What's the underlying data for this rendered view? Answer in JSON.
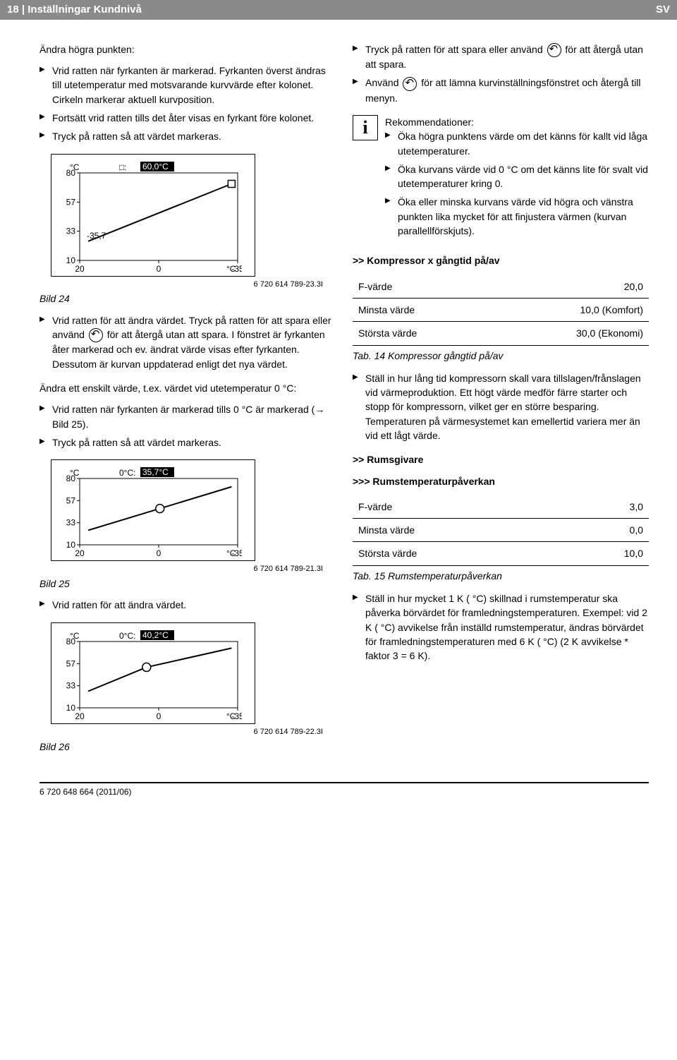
{
  "header": {
    "page_num": "18",
    "title": "Inställningar Kundnivå",
    "lang": "SV"
  },
  "left": {
    "intro_para": "Ändra högra punkten:",
    "intro_bullets": [
      "Vrid ratten när fyrkanten är markerad. Fyrkanten överst ändras till utetemperatur med motsvarande kurvvärde efter kolonet. Cirkeln markerar aktuell kurvposition.",
      "Fortsätt vrid ratten tills det åter visas en fyrkant före kolonet.",
      "Tryck på ratten så att värdet markeras."
    ],
    "chart24": {
      "type": "line",
      "unit": "°C",
      "header_label": "□:",
      "header_value": "60,0°C",
      "y_ticks": [
        "80",
        "57",
        "33",
        "10"
      ],
      "x_ticks": [
        "20",
        "0",
        "-35"
      ],
      "curve_point_label": "-35,7",
      "marker": "square_right",
      "curve": [
        [
          14,
          125
        ],
        [
          250,
          20
        ]
      ],
      "line_color": "#000000",
      "background": "#ffffff",
      "caption": "6 720 614 789-23.3I"
    },
    "bild24_label": "Bild 24",
    "after24_bullets": [
      "Vrid ratten för att ändra värdet. Tryck på ratten för att spara eller använd __ICON__ för att återgå utan att spara. I fönstret är fyrkanten åter markerad och ev. ändrat värde visas efter fyrkanten. Dessutom är kurvan uppdaterad enligt det nya värdet."
    ],
    "mid_para": "Ändra ett enskilt värde, t.ex. värdet vid utetemperatur 0 °C:",
    "mid_bullets": [
      "Vrid ratten när fyrkanten är markerad tills 0 °C är markerad (→ Bild 25).",
      "Tryck på ratten så att värdet markeras."
    ],
    "chart25": {
      "type": "line",
      "unit": "°C",
      "header_label": "0°C:",
      "header_value": "35,7°C",
      "y_ticks": [
        "80",
        "57",
        "33",
        "10"
      ],
      "x_ticks": [
        "20",
        "0",
        "-35"
      ],
      "marker": "circle_mid",
      "curve": [
        [
          14,
          125
        ],
        [
          250,
          20
        ]
      ],
      "line_color": "#000000",
      "background": "#ffffff",
      "caption": "6 720 614 789-21.3I",
      "height": 130
    },
    "bild25_label": "Bild 25",
    "after25_bullets": [
      "Vrid ratten för att ändra värdet."
    ],
    "chart26": {
      "type": "line",
      "unit": "°C",
      "header_label": "0°C:",
      "header_value": "40,2°C",
      "y_ticks": [
        "80",
        "57",
        "33",
        "10"
      ],
      "x_ticks": [
        "20",
        "0",
        "-35"
      ],
      "marker": "circle_mid_high",
      "curve": [
        [
          14,
          120
        ],
        [
          110,
          62
        ],
        [
          250,
          16
        ]
      ],
      "line_color": "#000000",
      "background": "#ffffff",
      "caption": "6 720 614 789-22.3I",
      "height": 130
    },
    "bild26_label": "Bild 26"
  },
  "right": {
    "top_bullets": [
      "Tryck på ratten för att spara eller använd __ICON__ för att återgå utan att spara.",
      "Använd __ICON__ för att lämna kurvinställningsfönstret och återgå till menyn."
    ],
    "info": {
      "title": "Rekommendationer:",
      "bullets": [
        "Öka högra punktens värde om det känns för kallt vid låga utetemperaturer.",
        "Öka kurvans värde vid 0 °C om det känns lite för svalt vid utetemperaturer kring 0.",
        "Öka eller minska kurvans värde vid högra och vänstra punkten lika mycket för att finjustera värmen (kurvan parallellförskjuts)."
      ]
    },
    "sub_kompressor": ">> Kompressor x gångtid på/av",
    "table14": {
      "rows": [
        [
          "F-värde",
          "20,0"
        ],
        [
          "Minsta värde",
          "10,0 (Komfort)"
        ],
        [
          "Största värde",
          "30,0 (Ekonomi)"
        ]
      ],
      "caption": "Tab. 14 Kompressor gångtid på/av"
    },
    "after_t14_bullets": [
      "Ställ in hur lång tid kompressorn skall vara tillslagen/frånslagen vid värmeproduktion.\nEtt högt värde medför färre starter och stopp för kompressorn, vilket ger en större besparing. Temperaturen på värmesystemet kan emellertid variera mer än vid ett lågt värde."
    ],
    "sub_rumsgivare": ">> Rumsgivare",
    "sub_rumstemp": ">>> Rumstemperaturpåverkan",
    "table15": {
      "rows": [
        [
          "F-värde",
          "3,0"
        ],
        [
          "Minsta värde",
          "0,0"
        ],
        [
          "Största värde",
          "10,0"
        ]
      ],
      "caption": "Tab. 15 Rumstemperaturpåverkan"
    },
    "after_t15_bullets": [
      "Ställ in hur mycket 1 K ( °C) skillnad i rumstemperatur ska påverka börvärdet för framledningstemperaturen. Exempel: vid 2 K ( °C) avvikelse från inställd rumstemperatur, ändras börvärdet för framledningstemperaturen med 6 K ( °C) (2 K avvikelse * faktor 3 = 6 K)."
    ]
  },
  "footer": "6 720 648 664 (2011/06)"
}
